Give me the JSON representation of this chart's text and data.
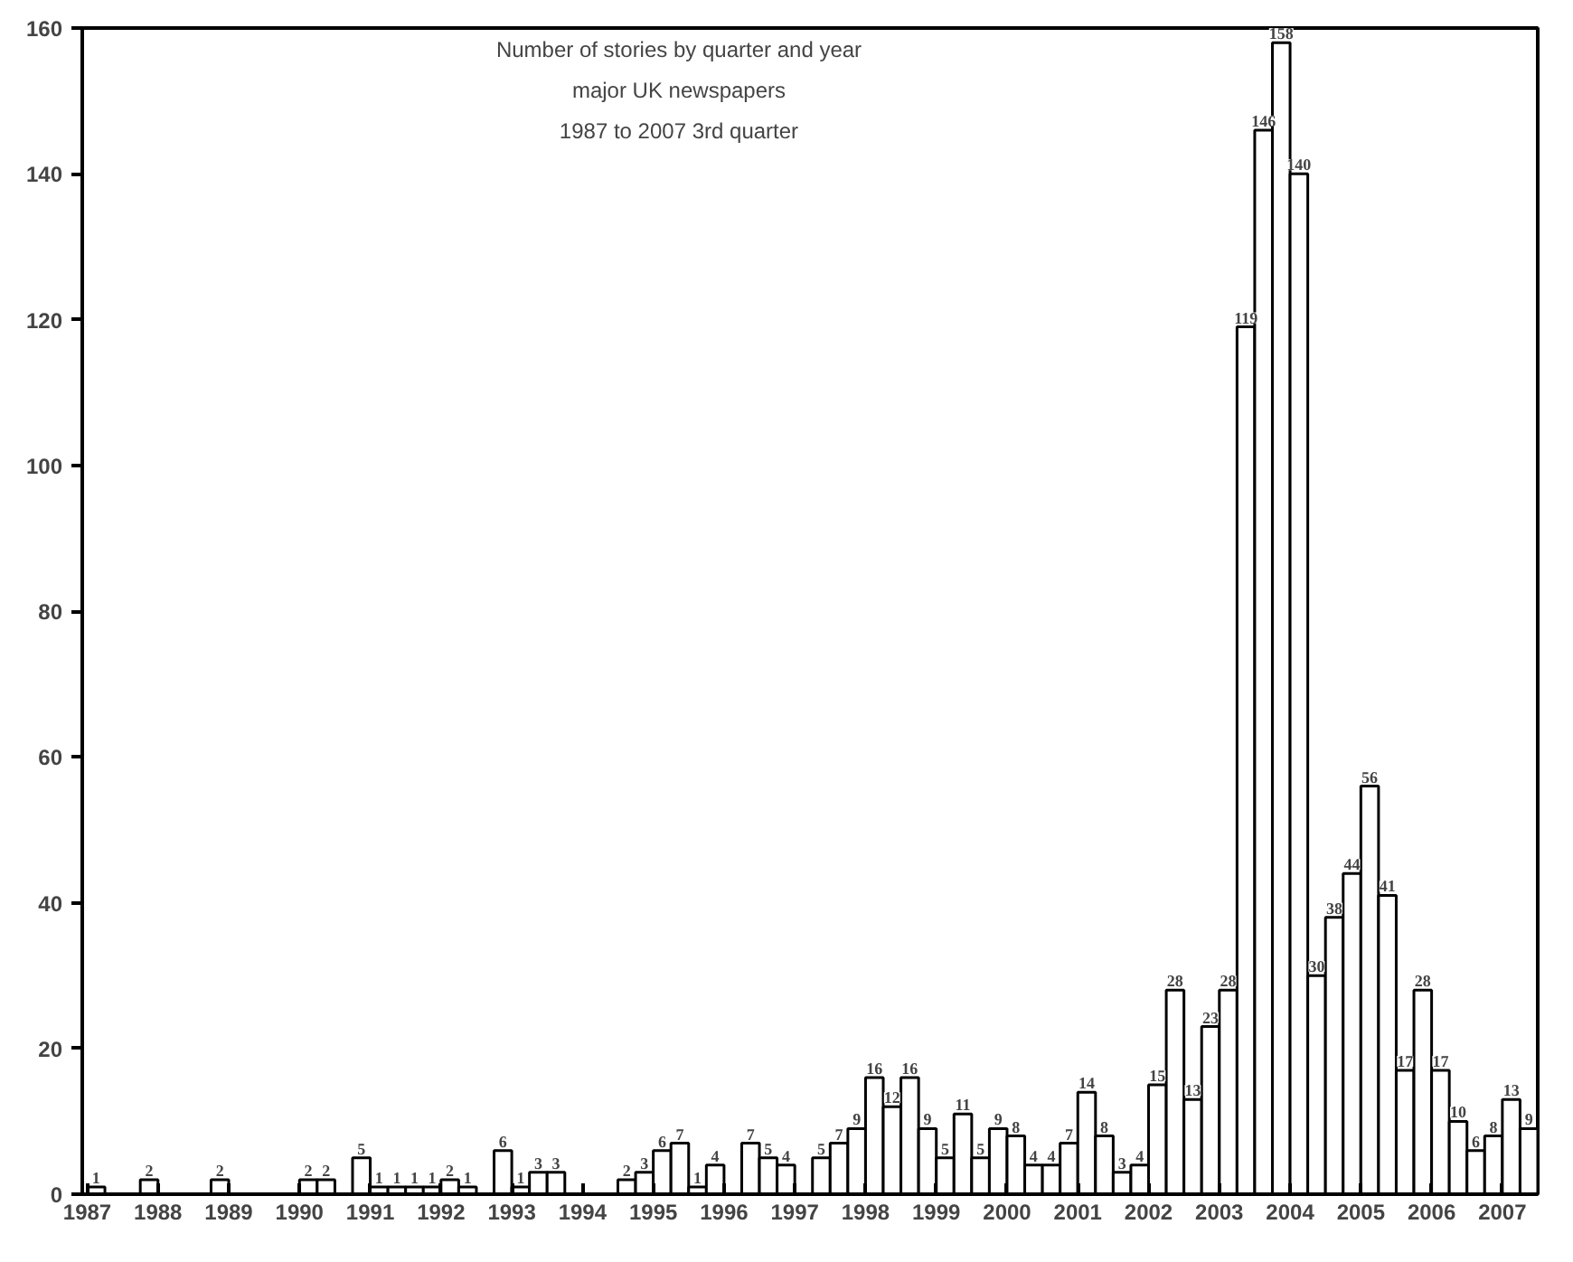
{
  "chart_data": {
    "type": "bar",
    "title": "Number of stories by quarter and year\nmajor UK newspapers\n1987 to 2007 3rd quarter",
    "x": [
      1987.125,
      1987.375,
      1987.625,
      1987.875,
      1988.125,
      1988.375,
      1988.625,
      1988.875,
      1989.125,
      1989.375,
      1989.625,
      1989.875,
      1990.125,
      1990.375,
      1990.625,
      1990.875,
      1991.125,
      1991.375,
      1991.625,
      1991.875,
      1992.125,
      1992.375,
      1992.625,
      1992.875,
      1993.125,
      1993.375,
      1993.625,
      1993.875,
      1994.125,
      1994.375,
      1994.625,
      1994.875,
      1995.125,
      1995.375,
      1995.625,
      1995.875,
      1996.125,
      1996.375,
      1996.625,
      1996.875,
      1997.125,
      1997.375,
      1997.625,
      1997.875,
      1998.125,
      1998.375,
      1998.625,
      1998.875,
      1999.125,
      1999.375,
      1999.625,
      1999.875,
      2000.125,
      2000.375,
      2000.625,
      2000.875,
      2001.125,
      2001.375,
      2001.625,
      2001.875,
      2002.125,
      2002.375,
      2002.625,
      2002.875,
      2003.125,
      2003.375,
      2003.625,
      2003.875,
      2004.125,
      2004.375,
      2004.625,
      2004.875,
      2005.125,
      2005.375,
      2005.625,
      2005.875,
      2006.125,
      2006.375,
      2006.625,
      2006.875,
      2007.125,
      2007.375
    ],
    "values": [
      1,
      0,
      0,
      2,
      0,
      0,
      0,
      2,
      0,
      0,
      0,
      0,
      2,
      2,
      0,
      5,
      1,
      1,
      1,
      1,
      2,
      1,
      0,
      6,
      1,
      3,
      3,
      0,
      0,
      0,
      2,
      3,
      6,
      7,
      1,
      4,
      0,
      7,
      5,
      4,
      0,
      5,
      7,
      9,
      16,
      12,
      16,
      9,
      5,
      11,
      5,
      9,
      8,
      4,
      4,
      7,
      14,
      8,
      3,
      4,
      15,
      28,
      13,
      23,
      28,
      119,
      146,
      158,
      140,
      30,
      38,
      44,
      56,
      41,
      17,
      28,
      17,
      10,
      6,
      8,
      13,
      9
    ],
    "value_labels": [
      "1",
      null,
      null,
      "2",
      null,
      null,
      null,
      "2",
      null,
      null,
      null,
      null,
      "2",
      "2",
      null,
      "5",
      "1",
      "1",
      "1",
      "1",
      "2",
      "1",
      null,
      "6",
      "1",
      "3",
      "3",
      null,
      null,
      null,
      "2",
      "3",
      "6",
      "7",
      "1",
      "4",
      null,
      "7",
      "5",
      "4",
      null,
      "5",
      "7",
      "9",
      "16",
      "12",
      "16",
      "9",
      "5",
      "11",
      "5",
      "9",
      "8",
      "4",
      "4",
      "7",
      "14",
      "8",
      "3",
      "4",
      "15",
      "28",
      "13",
      "23",
      "28",
      "119",
      "146",
      "158",
      "140",
      "30",
      "38",
      "44",
      "56",
      "41",
      "17",
      "28",
      "17",
      "10",
      "6",
      "8",
      "13",
      "9"
    ],
    "color": "#ffffff",
    "xlim": [
      1986.93,
      2007.5
    ],
    "xticks": [
      1987,
      1988,
      1989,
      1990,
      1991,
      1992,
      1993,
      1994,
      1995,
      1996,
      1997,
      1998,
      1999,
      2000,
      2001,
      2002,
      2003,
      2004,
      2005,
      2006,
      2007
    ],
    "ylim": [
      0,
      160
    ],
    "yticks": [
      0,
      20,
      40,
      60,
      80,
      100,
      120,
      140,
      160
    ],
    "grid": false
  }
}
